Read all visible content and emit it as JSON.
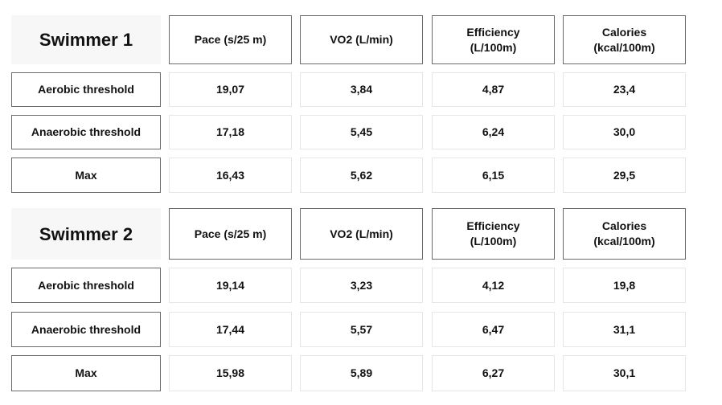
{
  "tables": [
    {
      "title": "Swimmer 1",
      "headers": [
        [
          "Pace (s/25 m)"
        ],
        [
          "VO2 (L/min)"
        ],
        [
          "Efficiency",
          "(L/100m)"
        ],
        [
          "Calories",
          "(kcal/100m)"
        ]
      ],
      "rows": [
        [
          "Aerobic threshold",
          "19,07",
          "3,84",
          "4,87",
          "23,4"
        ],
        [
          "Anaerobic threshold",
          "17,18",
          "5,45",
          "6,24",
          "30,0"
        ],
        [
          "Max",
          "16,43",
          "5,62",
          "6,15",
          "29,5"
        ]
      ]
    },
    {
      "title": "Swimmer 2",
      "headers": [
        [
          "Pace (s/25 m)"
        ],
        [
          "VO2 (L/min)"
        ],
        [
          "Efficiency",
          "(L/100m)"
        ],
        [
          "Calories",
          "(kcal/100m)"
        ]
      ],
      "rows": [
        [
          "Aerobic threshold",
          "19,14",
          "3,23",
          "4,12",
          "19,8"
        ],
        [
          "Anaerobic threshold",
          "17,44",
          "5,57",
          "6,47",
          "31,1"
        ],
        [
          "Max",
          "15,98",
          "5,89",
          "6,27",
          "30,1"
        ]
      ]
    }
  ]
}
